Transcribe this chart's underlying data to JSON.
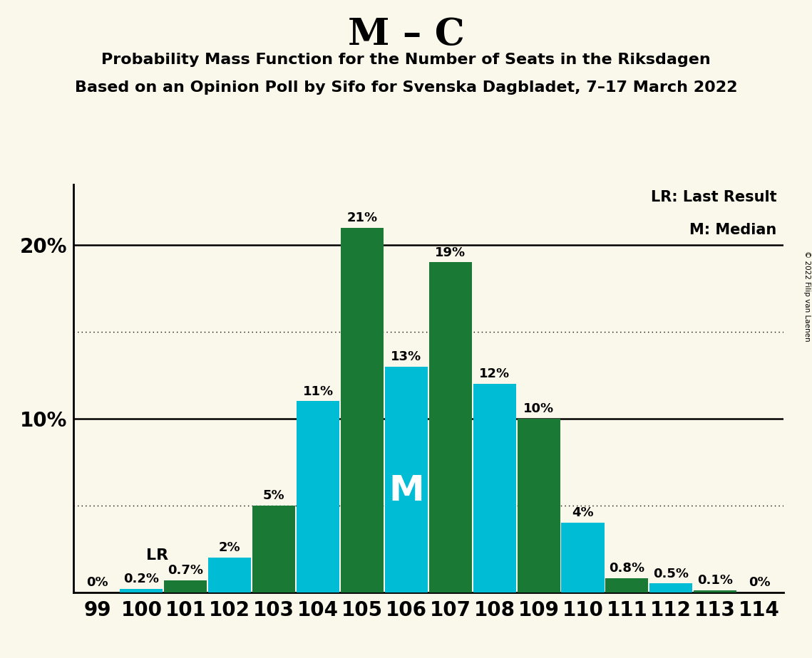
{
  "title": "M – C",
  "subtitle1": "Probability Mass Function for the Number of Seats in the Riksdagen",
  "subtitle2": "Based on an Opinion Poll by Sifo for Svenska Dagbladet, 7–17 March 2022",
  "copyright": "© 2022 Filip van Laenen",
  "categories": [
    99,
    100,
    101,
    102,
    103,
    104,
    105,
    106,
    107,
    108,
    109,
    110,
    111,
    112,
    113,
    114
  ],
  "values": [
    0.0,
    0.2,
    0.7,
    2.0,
    5.0,
    11.0,
    21.0,
    13.0,
    19.0,
    12.0,
    10.0,
    4.0,
    0.8,
    0.5,
    0.1,
    0.0
  ],
  "colors": [
    "#1a7a35",
    "#00bcd4",
    "#1a7a35",
    "#00bcd4",
    "#1a7a35",
    "#00bcd4",
    "#1a7a35",
    "#00bcd4",
    "#1a7a35",
    "#00bcd4",
    "#1a7a35",
    "#00bcd4",
    "#1a7a35",
    "#00bcd4",
    "#1a7a35",
    "#00bcd4"
  ],
  "labels": [
    "0%",
    "0.2%",
    "0.7%",
    "2%",
    "5%",
    "11%",
    "21%",
    "13%",
    "19%",
    "12%",
    "10%",
    "4%",
    "0.8%",
    "0.5%",
    "0.1%",
    "0%"
  ],
  "show_label": [
    true,
    true,
    true,
    true,
    true,
    true,
    true,
    true,
    true,
    true,
    true,
    true,
    true,
    true,
    true,
    true
  ],
  "background_color": "#faf8ea",
  "legend_lr": "LR: Last Result",
  "legend_m": "M: Median",
  "ylim_max": 23.5,
  "solid_lines": [
    10.0,
    20.0
  ],
  "dotted_lines": [
    5.0,
    15.0
  ],
  "color_green": "#1a7a35",
  "color_cyan": "#00bcd4",
  "title_fontsize": 38,
  "subtitle_fontsize": 16,
  "label_fontsize": 13,
  "tick_fontsize": 20,
  "ytick_fontsize": 20,
  "legend_fontsize": 15,
  "lr_bar_idx": 2,
  "median_bar_idx": 7,
  "lr_label": "LR",
  "median_label": "M",
  "bar_width": 0.97
}
